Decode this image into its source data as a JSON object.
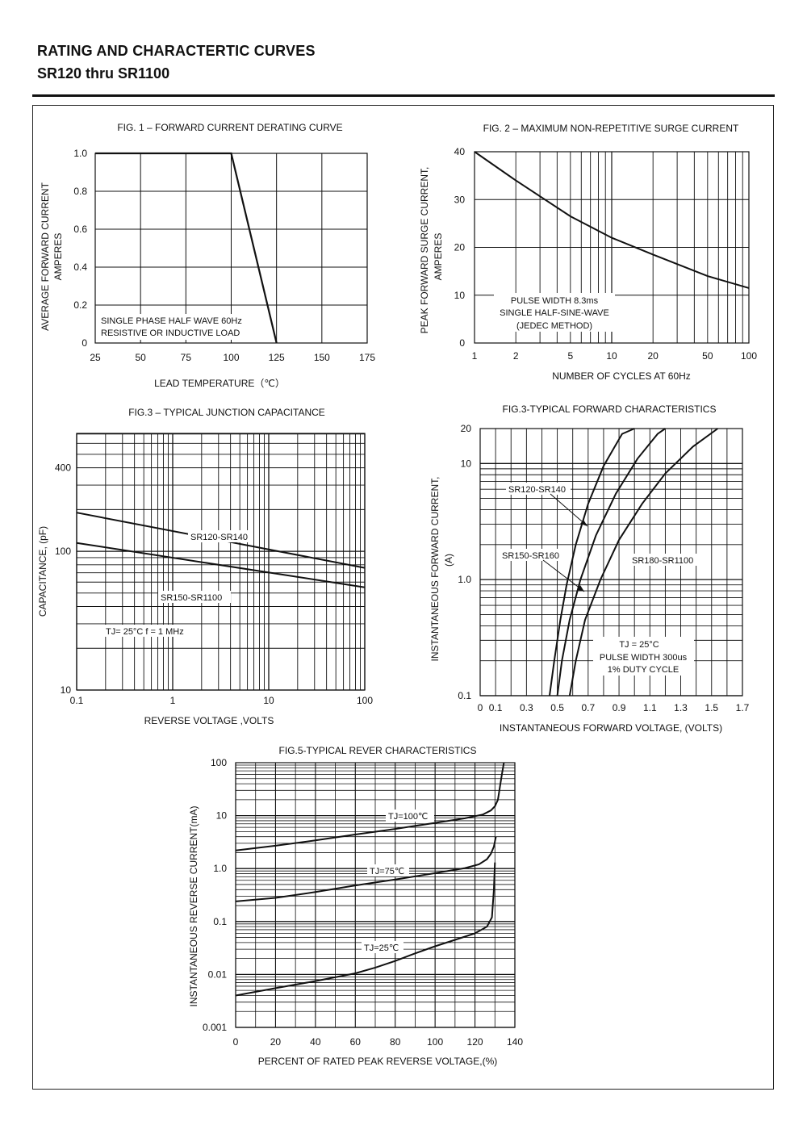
{
  "header": {
    "title": "RATING AND CHARACTERTIC CURVES",
    "subtitle": "SR120 thru SR1100"
  },
  "chart_data": [
    {
      "id": "fig1",
      "type": "line",
      "title": "FIG. 1 – FORWARD CURRENT DERATING CURVE",
      "xlabel": "LEAD TEMPERATURE（℃）",
      "ylabel": "AVERAGE FORWARD CURRENT",
      "ylabel2": "AMPERES",
      "xlim": [
        25,
        175
      ],
      "ylim": [
        0,
        1.0
      ],
      "x_ticks": [
        "25",
        "50",
        "75",
        "100",
        "125",
        "150",
        "175"
      ],
      "y_ticks": [
        "0",
        "0.2",
        "0.4",
        "0.6",
        "0.8",
        "1.0"
      ],
      "grid": true,
      "series": [
        {
          "x": [
            25,
            100,
            125
          ],
          "y": [
            1.0,
            1.0,
            0.0
          ]
        }
      ],
      "annotations": [
        "SINGLE PHASE HALF WAVE 60Hz",
        "RESISTIVE OR INDUCTIVE LOAD"
      ]
    },
    {
      "id": "fig2",
      "type": "line",
      "title": "FIG. 2 – MAXIMUM NON-REPETITIVE SURGE CURRENT",
      "xlabel": "NUMBER OF CYCLES AT 60Hz",
      "ylabel": "PEAK FORWARD SURGE CURRENT,",
      "ylabel2": "AMPERES",
      "x_scale": "log",
      "xlim": [
        1,
        100
      ],
      "ylim": [
        0,
        40
      ],
      "x_ticks": [
        "1",
        "2",
        "5",
        "10",
        "20",
        "50",
        "100"
      ],
      "y_ticks": [
        "0",
        "10",
        "20",
        "30",
        "40"
      ],
      "grid": true,
      "series": [
        {
          "x": [
            1,
            2,
            5,
            10,
            20,
            50,
            100
          ],
          "y": [
            40,
            34,
            26.5,
            22,
            18.5,
            14,
            11.5
          ]
        }
      ],
      "annotations": [
        "PULSE WIDTH 8.3ms",
        "SINGLE HALF-SINE-WAVE",
        "(JEDEC METHOD)"
      ]
    },
    {
      "id": "fig3",
      "type": "line",
      "title": "FIG.3 – TYPICAL JUNCTION CAPACITANCE",
      "xlabel": "REVERSE VOLTAGE ,VOLTS",
      "ylabel": "CAPACITANCE, (pF)",
      "x_scale": "log",
      "y_scale": "log",
      "xlim": [
        0.1,
        100
      ],
      "x_ticks": [
        "0.1",
        "1",
        "10",
        "100"
      ],
      "y_ticks": [
        "10",
        "100",
        "400"
      ],
      "grid": true,
      "series": [
        {
          "name": "SR120-SR140",
          "x": [
            0.1,
            100
          ],
          "y": [
            190,
            76
          ]
        },
        {
          "name": "SR150-SR1100",
          "x": [
            0.1,
            100
          ],
          "y": [
            115,
            55
          ]
        }
      ],
      "annotations": [
        "TJ= 25°C  f = 1 MHz"
      ]
    },
    {
      "id": "fig4",
      "type": "line",
      "title": "FIG.3-TYPICAL FORWARD CHARACTERISTICS",
      "xlabel": "INSTANTANEOUS FORWARD VOLTAGE, (VOLTS)",
      "ylabel": "INSTANTANEOUS FORWARD CURRENT,",
      "ylabel2": "(A)",
      "y_scale": "log",
      "xlim": [
        0,
        1.7
      ],
      "x_ticks": [
        "0",
        "0.1",
        "0.3",
        "0.5",
        "0.7",
        "0.9",
        "1.1",
        "1.3",
        "1.5",
        "1.7"
      ],
      "y_ticks": [
        "0.1",
        "1.0",
        "10",
        "20"
      ],
      "grid": true,
      "series": [
        {
          "name": "SR120-SR140",
          "x": [
            0.45,
            0.48,
            0.52,
            0.56,
            0.62,
            0.7,
            0.8,
            0.92,
            1.0
          ],
          "y": [
            0.1,
            0.2,
            0.45,
            0.9,
            2.0,
            4.5,
            9.5,
            18,
            20
          ]
        },
        {
          "name": "SR150-SR160",
          "x": [
            0.5,
            0.53,
            0.58,
            0.65,
            0.75,
            0.88,
            1.02,
            1.15,
            1.2
          ],
          "y": [
            0.1,
            0.2,
            0.45,
            1.0,
            2.4,
            5.5,
            11,
            18,
            20
          ]
        },
        {
          "name": "SR180-SR1100",
          "x": [
            0.58,
            0.62,
            0.68,
            0.78,
            0.9,
            1.05,
            1.2,
            1.38,
            1.54
          ],
          "y": [
            0.1,
            0.2,
            0.45,
            1.0,
            2.2,
            4.5,
            8.2,
            14,
            20
          ]
        }
      ],
      "annotations": [
        "TJ = 25°C",
        "PULSE WIDTH 300us",
        "1% DUTY CYCLE"
      ]
    },
    {
      "id": "fig5",
      "type": "line",
      "title": "FIG.5-TYPICAL REVER CHARACTERISTICS",
      "xlabel": "PERCENT OF RATED PEAK REVERSE VOLTAGE,(%)",
      "ylabel": "INSTANTANEOUS REVERSE CURRENT(mA)",
      "y_scale": "log",
      "xlim": [
        0,
        140
      ],
      "ylim": [
        0.001,
        100
      ],
      "x_ticks": [
        "0",
        "20",
        "40",
        "60",
        "80",
        "100",
        "120",
        "140"
      ],
      "y_ticks": [
        "0.001",
        "0.01",
        "0.1",
        "1.0",
        "10",
        "100"
      ],
      "grid": true,
      "series": [
        {
          "name": "TJ=100℃",
          "x": [
            0,
            20,
            40,
            60,
            80,
            100,
            115,
            124,
            128,
            130,
            131.5,
            132.5,
            133.5,
            134.5
          ],
          "y": [
            2.2,
            2.7,
            3.4,
            4.4,
            5.6,
            7.3,
            8.9,
            10.5,
            12.5,
            15,
            20,
            35,
            60,
            100
          ]
        },
        {
          "name": "TJ=75℃",
          "x": [
            0,
            20,
            40,
            60,
            80,
            100,
            115,
            122,
            126,
            128,
            129.5,
            130.5
          ],
          "y": [
            0.24,
            0.28,
            0.36,
            0.48,
            0.62,
            0.82,
            1.02,
            1.2,
            1.5,
            1.9,
            2.6,
            4.0
          ]
        },
        {
          "name": "TJ=25℃",
          "x": [
            0,
            20,
            40,
            60,
            70,
            80,
            90,
            100,
            110,
            120,
            126,
            128.5,
            129.5,
            130
          ],
          "y": [
            0.004,
            0.0055,
            0.0075,
            0.0105,
            0.0135,
            0.018,
            0.025,
            0.034,
            0.045,
            0.06,
            0.08,
            0.12,
            0.4,
            1.3
          ]
        }
      ]
    }
  ]
}
